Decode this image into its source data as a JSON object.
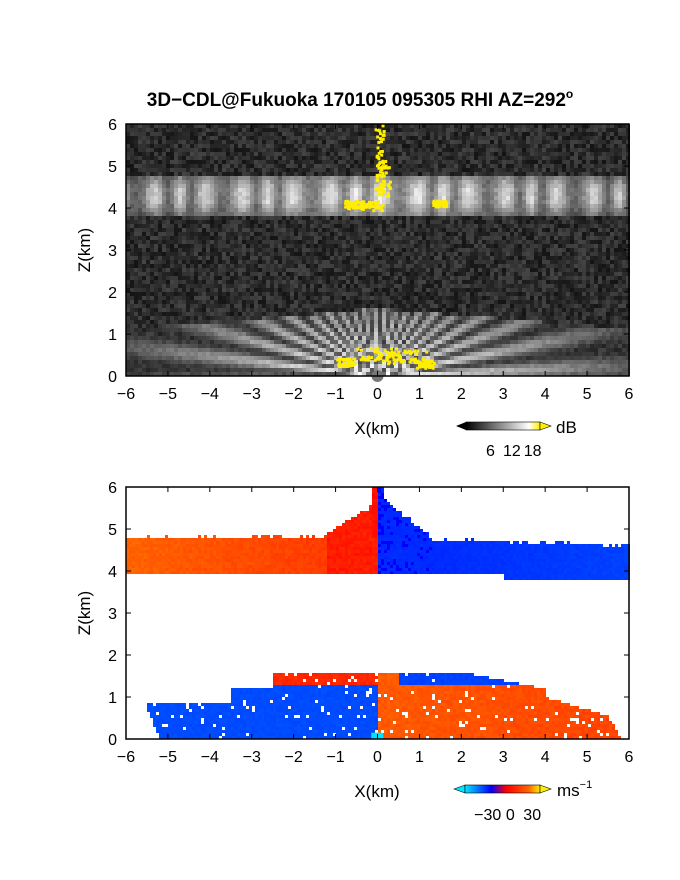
{
  "title": {
    "main": "3D−CDL@Fukuoka 170105 095305 RHI AZ=292",
    "degree_symbol": "o"
  },
  "chart_data": [
    {
      "type": "heatmap",
      "name": "reflectivity",
      "xlabel": "X(km)",
      "ylabel": "Z(km)",
      "xlim": [
        -6,
        6
      ],
      "ylim": [
        0,
        6
      ],
      "xticks": [
        "−6",
        "−5",
        "−4",
        "−3",
        "−2",
        "−1",
        "0",
        "1",
        "2",
        "3",
        "4",
        "5",
        "6"
      ],
      "yticks": [
        "0",
        "1",
        "2",
        "3",
        "4",
        "5",
        "6"
      ],
      "layers": [
        {
          "label": "upper echo band",
          "z_range": [
            3.8,
            4.8
          ],
          "x_range": [
            -6,
            6
          ],
          "intensity_db": 10
        },
        {
          "label": "lower echo dome",
          "z_range": [
            0,
            1.6
          ],
          "x_range": [
            -6,
            6
          ],
          "intensity_db": 12
        }
      ],
      "background_db": 3,
      "saturated_color": "#ffee00",
      "colorbar": {
        "unit": "dB",
        "ticks": [
          "6",
          "12",
          "18"
        ],
        "min": 0,
        "max": 20,
        "colors": [
          "#000000",
          "#ffffff",
          "#ffee00"
        ]
      }
    },
    {
      "type": "heatmap",
      "name": "doppler-velocity",
      "xlabel": "X(km)",
      "ylabel": "Z(km)",
      "xlim": [
        -6,
        6
      ],
      "ylim": [
        0,
        6
      ],
      "xticks": [
        "−6",
        "−5",
        "−4",
        "−3",
        "−2",
        "−1",
        "0",
        "1",
        "2",
        "3",
        "4",
        "5",
        "6"
      ],
      "yticks": [
        "0",
        "1",
        "2",
        "3",
        "4",
        "5",
        "6"
      ],
      "layers": [
        {
          "label": "upper band",
          "z_range": [
            3.9,
            4.8
          ],
          "left_velocity_ms": 20,
          "right_velocity_ms": -22
        },
        {
          "label": "lower layer",
          "z_range": [
            0,
            1.6
          ],
          "left_velocity_ms": -25,
          "right_velocity_ms": 18
        }
      ],
      "colorbar": {
        "unit": "ms",
        "unit_exponent": "−1",
        "ticks": [
          "−30",
          "0",
          "30"
        ],
        "min": -40,
        "max": 40,
        "colors": [
          "#00e5ff",
          "#0000ff",
          "#ff0000",
          "#ffee00"
        ]
      }
    }
  ]
}
